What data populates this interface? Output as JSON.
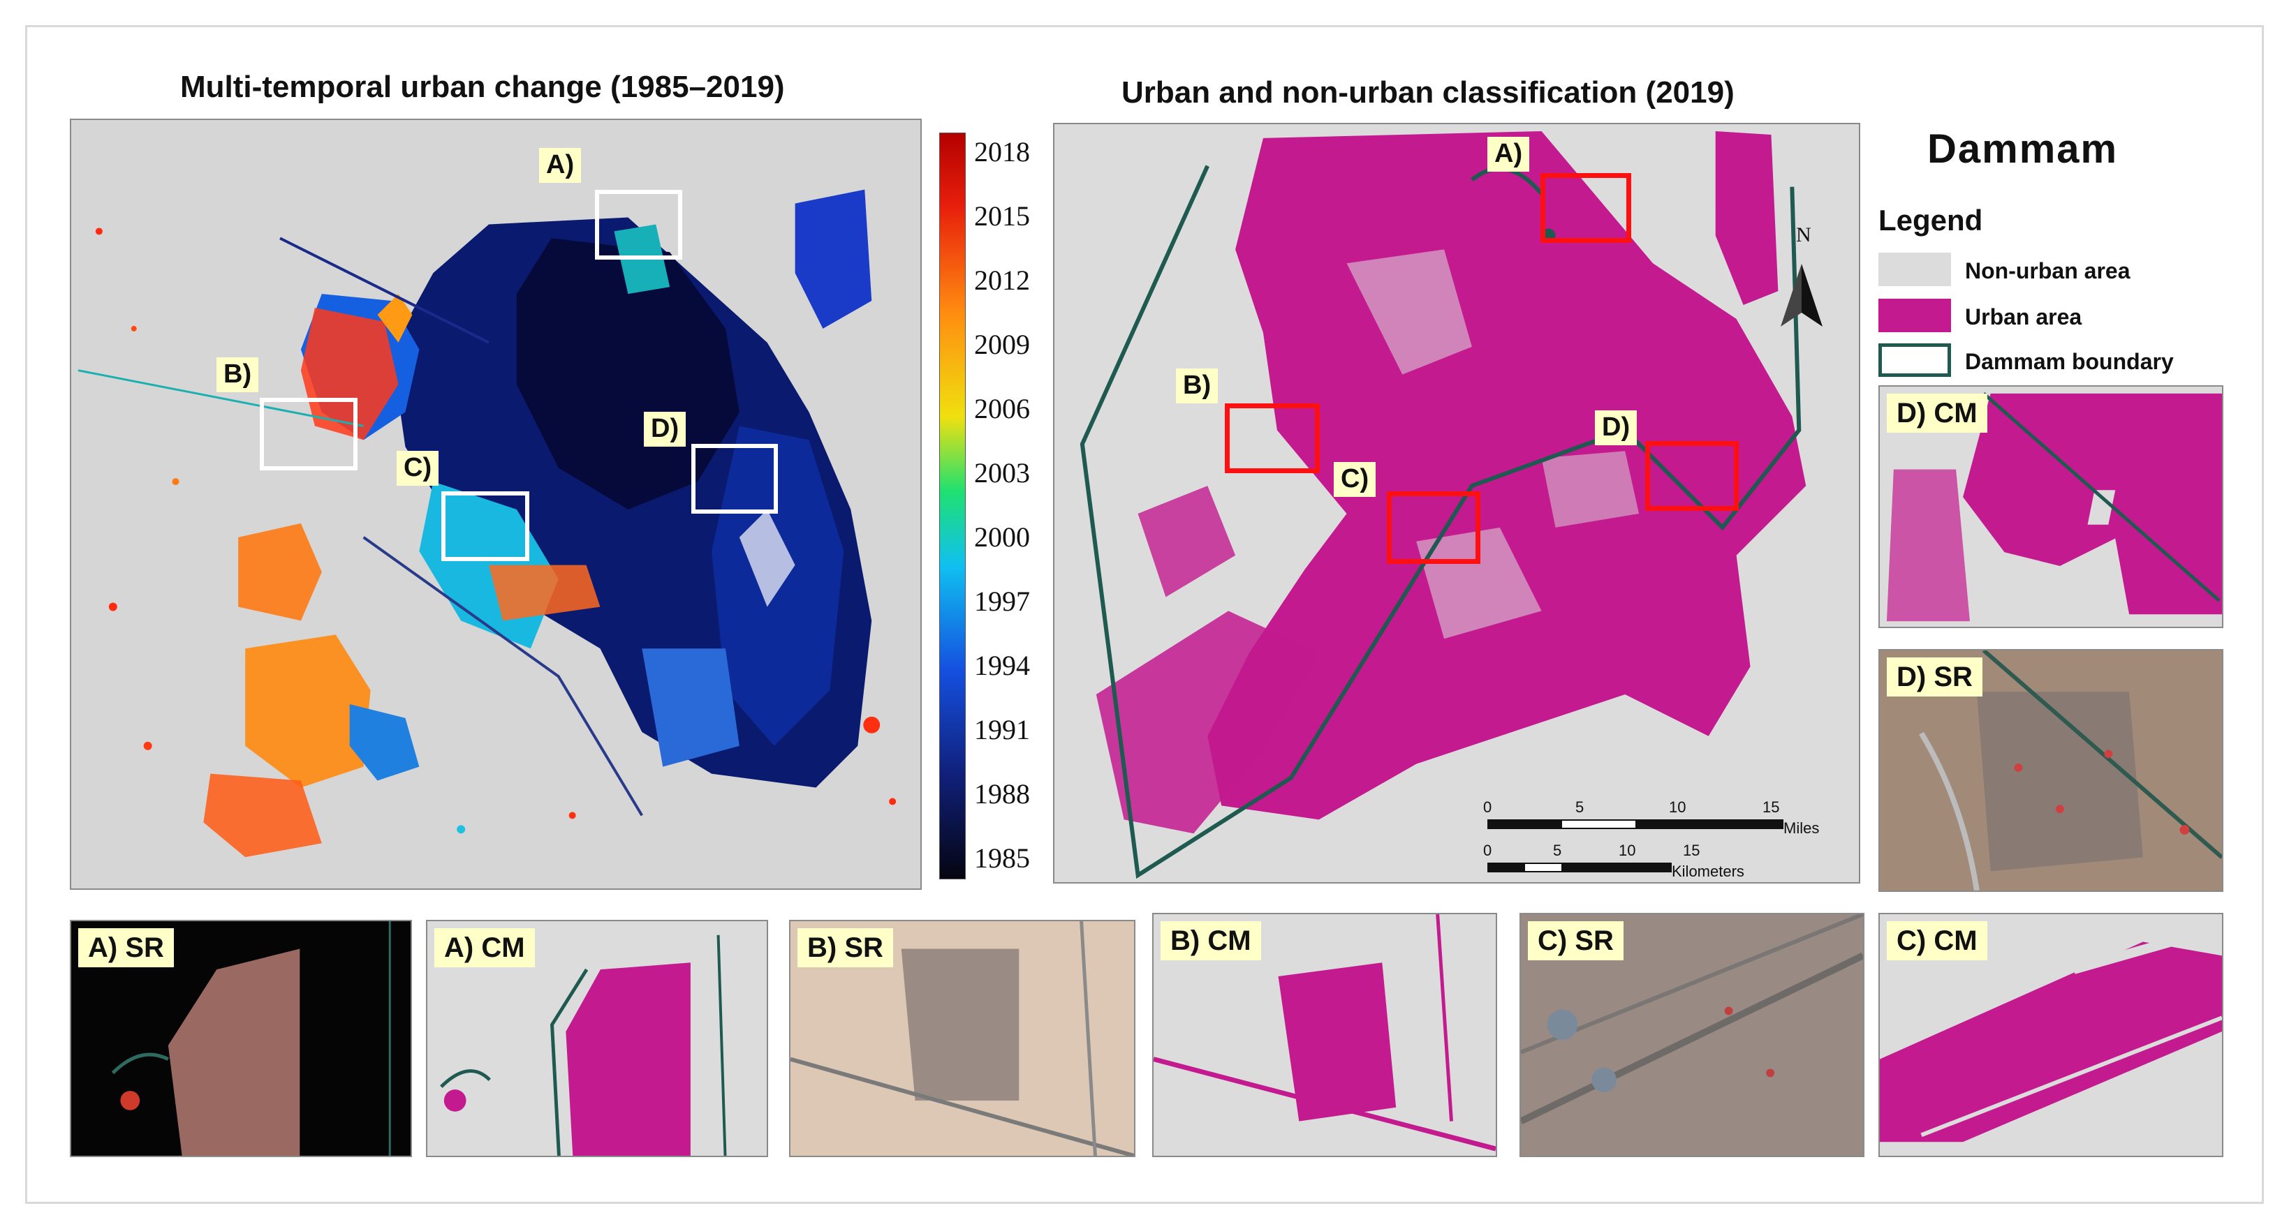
{
  "left_title": "Multi-temporal urban change (1985–2019)",
  "mid_title": "Urban and non-urban classification (2019)",
  "city": "Dammam",
  "colorbar_ticks": [
    "2018",
    "2015",
    "2012",
    "2009",
    "2006",
    "2003",
    "2000",
    "1997",
    "1994",
    "1991",
    "1988",
    "1985"
  ],
  "region_labels": {
    "a": "A)",
    "b": "B)",
    "c": "C)",
    "d": "D)"
  },
  "north": "N",
  "legend": {
    "title": "Legend",
    "items": [
      {
        "label": "Non-urban area",
        "color": "#dcdcdc"
      },
      {
        "label": "Urban area",
        "color": "#c31a8f"
      },
      {
        "label": "Dammam boundary",
        "color": "#1e5a50"
      }
    ]
  },
  "scalebar": {
    "miles": [
      "0",
      "5",
      "10",
      "15"
    ],
    "miles_unit": "Miles",
    "km": [
      "0",
      "5",
      "10",
      "15"
    ],
    "km_unit": "Kilometers"
  },
  "insets": {
    "a_sr": "A) SR",
    "a_cm": "A) CM",
    "b_sr": "B) SR",
    "b_cm": "B) CM",
    "c_sr": "C) SR",
    "c_cm": "C) CM",
    "d_cm": "D) CM",
    "d_sr": "D) SR"
  },
  "colors": {
    "urban": "#c31a8f",
    "nonurban": "#dcdcdc",
    "boundary": "#1e5a50",
    "box_red": "#ff1010"
  }
}
